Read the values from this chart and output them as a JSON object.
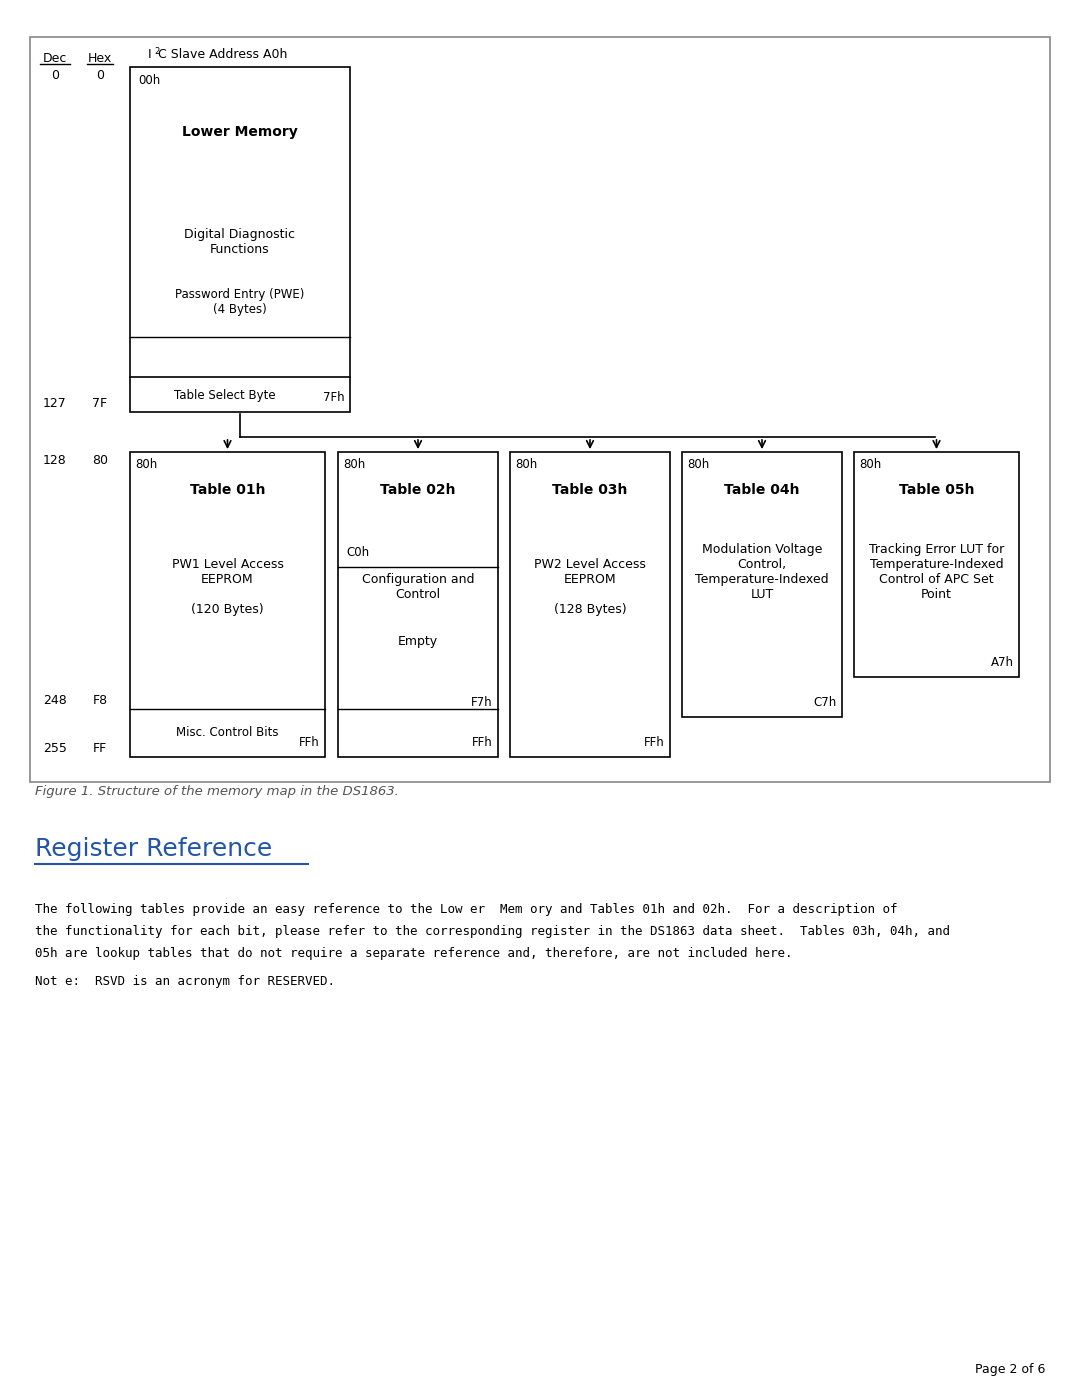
{
  "bg_color": "#ffffff",
  "outer_border_color": "#888888",
  "title_color": "#2255aa",
  "fig_caption_color": "#555555",
  "figure_caption": "Figure 1. Structure of the memory map in the DS1863.",
  "section_title": "Register Reference",
  "note_text": "Not e:  RSVD is an acronym for RESERVED.",
  "page_text": "Page 2 of 6",
  "para_lines": [
    "The following tables provide an easy reference to the Low er  Mem ory and Tables 01h and 02h.  For a description of",
    "the functionality for each bit, please refer to the corresponding register in the DS1863 data sheet.  Tables 03h, 04h, and",
    "05h are lookup tables that do not require a separate reference and, therefore, are not included here."
  ]
}
